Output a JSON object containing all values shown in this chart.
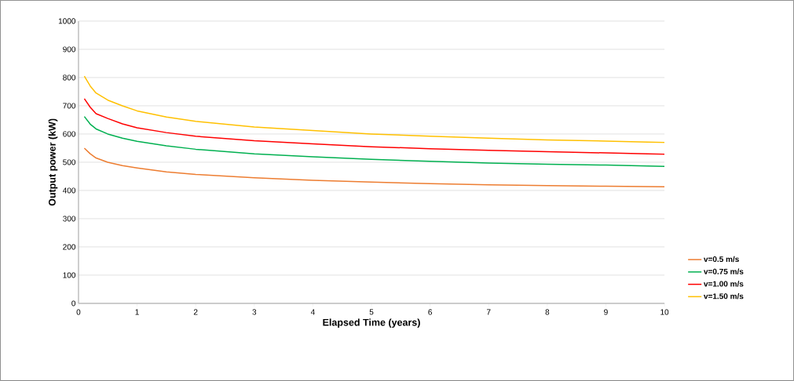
{
  "chart_data": {
    "type": "line",
    "xlabel": "Elapsed Time (years)",
    "ylabel": "Output power (kW)",
    "x": [
      0.1,
      0.2,
      0.3,
      0.5,
      0.75,
      1,
      1.5,
      2,
      3,
      4,
      5,
      6,
      7,
      8,
      9,
      10
    ],
    "series": [
      {
        "name": "v=0.5 m/s",
        "color": "#ed7d31",
        "values": [
          550,
          530,
          515,
          500,
          488,
          480,
          466,
          457,
          445,
          436,
          430,
          424,
          420,
          417,
          415,
          413
        ]
      },
      {
        "name": "v=0.75 m/s",
        "color": "#00b050",
        "values": [
          662,
          635,
          618,
          600,
          585,
          574,
          558,
          546,
          530,
          519,
          510,
          503,
          497,
          493,
          490,
          485
        ]
      },
      {
        "name": "v=1.00 m/s",
        "color": "#ff0000",
        "values": [
          725,
          695,
          672,
          655,
          636,
          622,
          605,
          592,
          576,
          565,
          555,
          548,
          542,
          537,
          533,
          528
        ]
      },
      {
        "name": "v=1.50 m/s",
        "color": "#ffc000",
        "values": [
          805,
          770,
          745,
          720,
          700,
          682,
          660,
          645,
          625,
          612,
          600,
          592,
          585,
          579,
          575,
          570
        ]
      }
    ],
    "xlim": [
      0,
      10
    ],
    "ylim": [
      0,
      1000
    ],
    "xticks": [
      0,
      1,
      2,
      3,
      4,
      5,
      6,
      7,
      8,
      9,
      10
    ],
    "yticks": [
      0,
      100,
      200,
      300,
      400,
      500,
      600,
      700,
      800,
      900,
      1000
    ],
    "grid": "y",
    "legend": "right",
    "marker": "none",
    "line_style": "solid"
  }
}
